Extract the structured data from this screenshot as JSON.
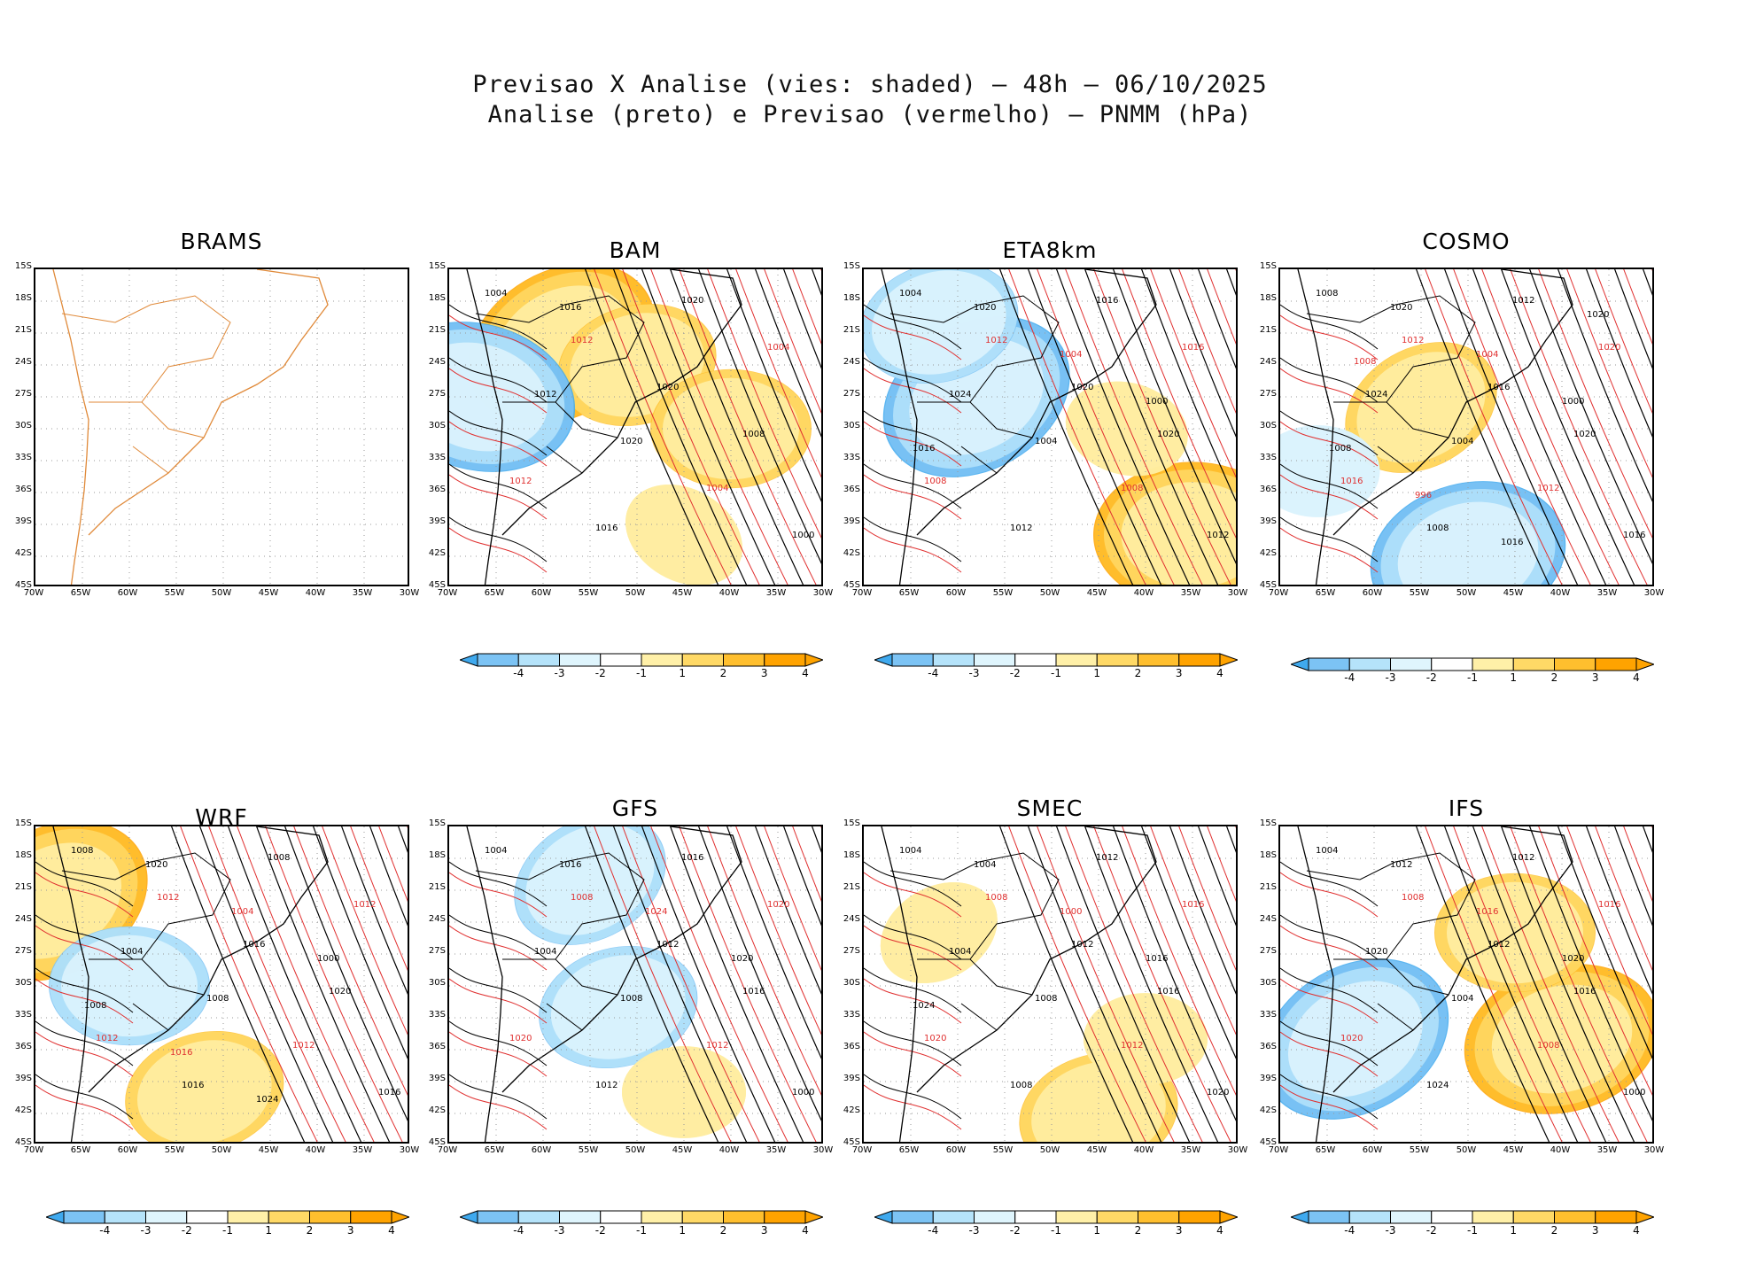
{
  "title_line1": "Previsao X Analise (vies: shaded) — 48h — 06/10/2025",
  "title_line2": "Analise (preto) e Previsao (vermelho) — PNMM (hPa)",
  "lat_labels": [
    "15S",
    "18S",
    "21S",
    "24S",
    "27S",
    "30S",
    "33S",
    "36S",
    "39S",
    "42S",
    "45S"
  ],
  "lon_labels": [
    "70W",
    "65W",
    "60W",
    "55W",
    "50W",
    "45W",
    "40W",
    "35W",
    "30W"
  ],
  "colorbar_ticks": [
    "-4",
    "-3",
    "-2",
    "-1",
    "1",
    "2",
    "3",
    "4"
  ],
  "colors": {
    "bias_levels": [
      "#3fa9ee",
      "#7cc3f4",
      "#b5e3fa",
      "#dff5fd",
      "#ffffff",
      "#fff0a8",
      "#ffd966",
      "#ffbf2e",
      "#ffa300"
    ],
    "analysis_contour": "#000000",
    "forecast_contour": "#e03030",
    "coastline": "#e08a3a"
  },
  "chart_data": [
    {
      "type": "heatmap",
      "model": "BRAMS",
      "title": "BRAMS",
      "variable": "PNMM bias (hPa)",
      "forecast_hour": "48h",
      "date": "06/10/2025",
      "lat_range": [
        -45,
        -15
      ],
      "lon_range": [
        -70,
        -30
      ],
      "has_data": false,
      "contour_labels": []
    },
    {
      "type": "heatmap",
      "model": "BAM",
      "title": "BAM",
      "lat_range": [
        -45,
        -15
      ],
      "lon_range": [
        -70,
        -30
      ],
      "has_data": true,
      "bias_pattern": [
        {
          "lon": -58,
          "lat": -22,
          "bias": 4
        },
        {
          "lon": -50,
          "lat": -24,
          "bias": 3
        },
        {
          "lon": -40,
          "lat": -30,
          "bias": 3
        },
        {
          "lon": -67,
          "lat": -27,
          "bias": -4
        },
        {
          "lon": -45,
          "lat": -40,
          "bias": 2
        }
      ],
      "contour_labels": [
        "1004",
        "1012",
        "1020",
        "1008",
        "1012",
        "1016",
        "1020",
        "1004",
        "1012",
        "1020",
        "1004",
        "1000",
        "1016"
      ]
    },
    {
      "type": "heatmap",
      "model": "ETA8km",
      "title": "ETA8km",
      "lat_range": [
        -45,
        -15
      ],
      "lon_range": [
        -70,
        -30
      ],
      "has_data": true,
      "bias_pattern": [
        {
          "lon": -58,
          "lat": -27,
          "bias": -4
        },
        {
          "lon": -62,
          "lat": -20,
          "bias": -3
        },
        {
          "lon": -35,
          "lat": -40,
          "bias": 4
        },
        {
          "lon": -42,
          "lat": -30,
          "bias": 2
        }
      ],
      "contour_labels": [
        "1004",
        "1012",
        "1020",
        "1020",
        "1008",
        "1012",
        "1016",
        "1016",
        "1024",
        "1004",
        "1008",
        "1012",
        "1020",
        "1004",
        "1000",
        "1016"
      ]
    },
    {
      "type": "heatmap",
      "model": "COSMO",
      "title": "COSMO",
      "lat_range": [
        -45,
        -15
      ],
      "lon_range": [
        -70,
        -30
      ],
      "has_data": true,
      "bias_pattern": [
        {
          "lon": -55,
          "lat": -28,
          "bias": 3
        },
        {
          "lon": -50,
          "lat": -42,
          "bias": -4
        },
        {
          "lon": -66,
          "lat": -34,
          "bias": -2
        }
      ],
      "contour_labels": [
        "1008",
        "1012",
        "1016",
        "1020",
        "1016",
        "1008",
        "1012",
        "1020",
        "1024",
        "1004",
        "1012",
        "1016",
        "1020",
        "1004",
        "1000",
        "1008",
        "996",
        "1016",
        "1020",
        "1008"
      ]
    },
    {
      "type": "heatmap",
      "model": "WRF",
      "title": "WRF",
      "lat_range": [
        -45,
        -15
      ],
      "lon_range": [
        -70,
        -30
      ],
      "has_data": true,
      "bias_pattern": [
        {
          "lon": -68,
          "lat": -22,
          "bias": 4
        },
        {
          "lon": -52,
          "lat": -40,
          "bias": 3
        },
        {
          "lon": -60,
          "lat": -30,
          "bias": -3
        }
      ],
      "contour_labels": [
        "1008",
        "1012",
        "1016",
        "1020",
        "1012",
        "1016",
        "1008",
        "1012",
        "1004",
        "1008",
        "1012",
        "1016",
        "1020",
        "1004",
        "1000",
        "1008",
        "1016",
        "1024"
      ]
    },
    {
      "type": "heatmap",
      "model": "GFS",
      "title": "GFS",
      "lat_range": [
        -45,
        -15
      ],
      "lon_range": [
        -70,
        -30
      ],
      "has_data": true,
      "bias_pattern": [
        {
          "lon": -55,
          "lat": -20,
          "bias": -3
        },
        {
          "lon": -52,
          "lat": -32,
          "bias": -3
        },
        {
          "lon": -45,
          "lat": -40,
          "bias": 2
        }
      ],
      "contour_labels": [
        "1004",
        "1008",
        "1012",
        "1016",
        "1020",
        "1012",
        "1016",
        "1020",
        "1004",
        "1008",
        "1012",
        "1000",
        "1016",
        "1024",
        "1020"
      ]
    },
    {
      "type": "heatmap",
      "model": "SMEC",
      "title": "SMEC",
      "lat_range": [
        -45,
        -15
      ],
      "lon_range": [
        -70,
        -30
      ],
      "has_data": true,
      "bias_pattern": [
        {
          "lon": -62,
          "lat": -25,
          "bias": 2
        },
        {
          "lon": -45,
          "lat": -42,
          "bias": 3
        },
        {
          "lon": -40,
          "lat": -35,
          "bias": 2
        }
      ],
      "contour_labels": [
        "1004",
        "1008",
        "1012",
        "1016",
        "1020",
        "1008",
        "1012",
        "1016",
        "1004",
        "1008",
        "1012",
        "1020",
        "1004",
        "1000",
        "1016",
        "1024"
      ]
    },
    {
      "type": "heatmap",
      "model": "IFS",
      "title": "IFS",
      "lat_range": [
        -45,
        -15
      ],
      "lon_range": [
        -70,
        -30
      ],
      "has_data": true,
      "bias_pattern": [
        {
          "lon": -62,
          "lat": -35,
          "bias": -4
        },
        {
          "lon": -40,
          "lat": -35,
          "bias": 4
        },
        {
          "lon": -45,
          "lat": -25,
          "bias": 3
        }
      ],
      "contour_labels": [
        "1004",
        "1008",
        "1012",
        "1016",
        "1020",
        "1024",
        "1012",
        "1016",
        "1020",
        "1004",
        "1008",
        "1000",
        "1012",
        "1016",
        "1020"
      ]
    }
  ]
}
